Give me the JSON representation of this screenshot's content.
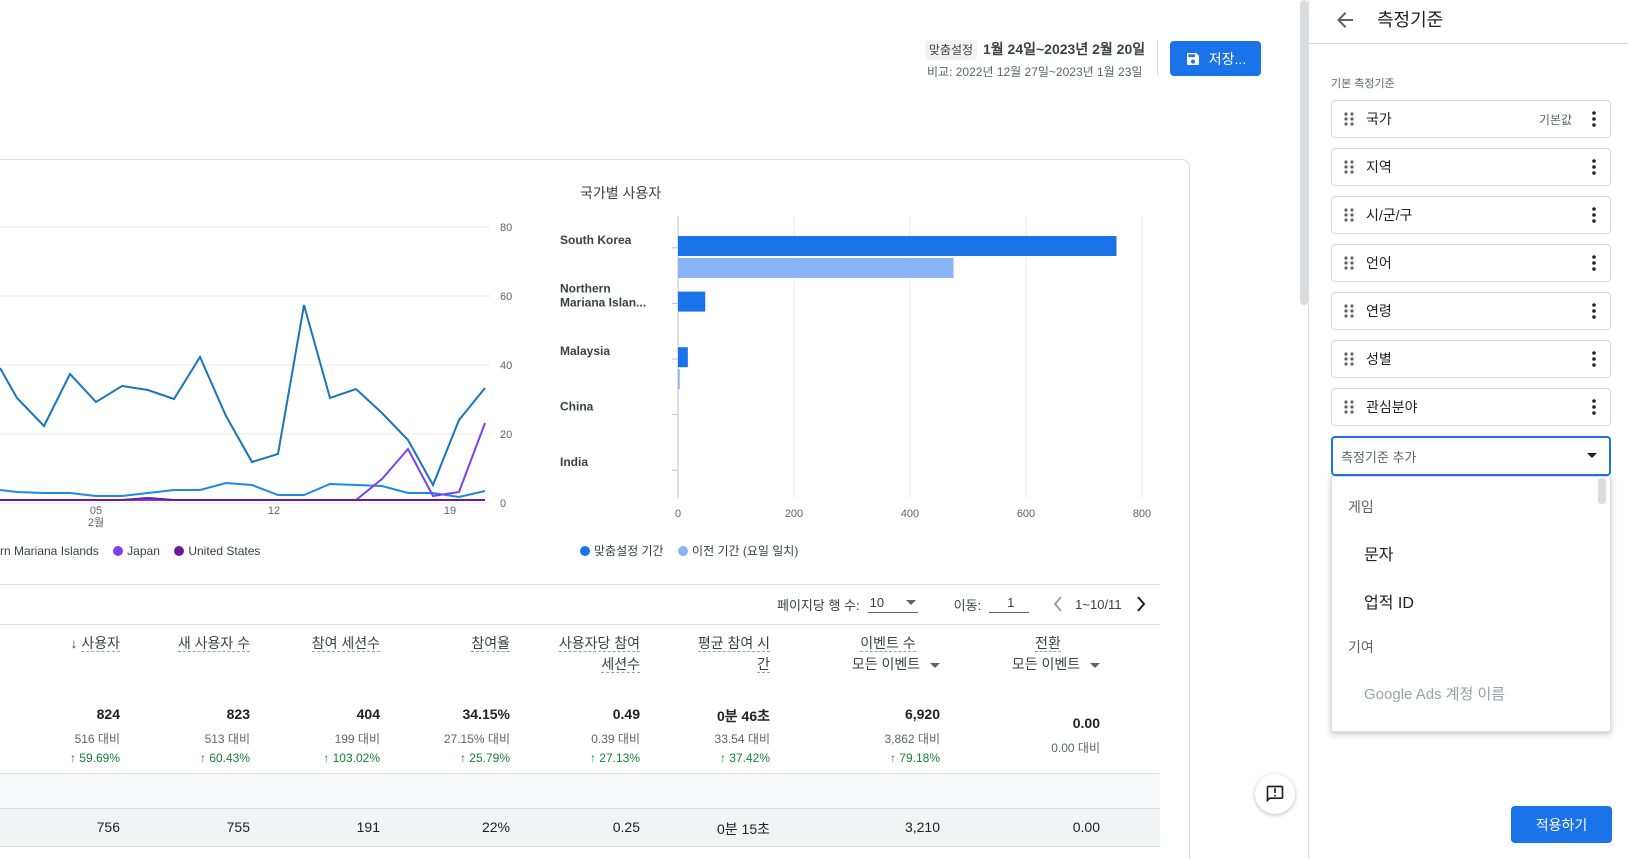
{
  "header": {
    "custom_badge": "맞춤설정",
    "date_range": "1월 24일~2023년 2월 20일",
    "compare": "비교: 2022년 12월 27일~2023년 1월 23일",
    "save_label": "저장..."
  },
  "line_chart": {
    "y_ticks": [
      "80",
      "60",
      "40",
      "20",
      "0"
    ],
    "x_ticks": [
      {
        "label": "05",
        "sub": "2월"
      },
      {
        "label": "12",
        "sub": ""
      },
      {
        "label": "19",
        "sub": ""
      }
    ],
    "legend": [
      {
        "name": "rn Mariana Islands",
        "color": "#1e88e5"
      },
      {
        "name": "Japan",
        "color": "#7e3ff2"
      },
      {
        "name": "United States",
        "color": "#6a1b9a"
      }
    ]
  },
  "chart_data": {
    "type": "bar",
    "title": "국가별 사용자",
    "categories": [
      "South Korea",
      "Northern Mariana Islan...",
      "Malaysia",
      "China",
      "India"
    ],
    "series": [
      {
        "name": "맞춤설정 기간",
        "color": "#1a73e8",
        "values": [
          756,
          47,
          17,
          0,
          0
        ]
      },
      {
        "name": "이전 기간 (요일 일치)",
        "color": "#8ab4f8",
        "values": [
          475,
          0,
          3,
          0,
          0
        ]
      }
    ],
    "xlim": [
      0,
      800
    ],
    "x_ticks": [
      "0",
      "200",
      "400",
      "600",
      "800"
    ],
    "grid": true,
    "legend": "bottom"
  },
  "pagination": {
    "rows_label": "페이지당 행 수:",
    "rows_value": "10",
    "goto_label": "이동:",
    "goto_value": "1",
    "range": "1~10/11"
  },
  "table": {
    "columns": [
      {
        "line1": "사용자",
        "line2": "",
        "sorted": true
      },
      {
        "line1": "새 사용자 수",
        "line2": ""
      },
      {
        "line1": "참여 세션수",
        "line2": ""
      },
      {
        "line1": "참여율",
        "line2": ""
      },
      {
        "line1": "사용자당 참여",
        "line2": "세션수"
      },
      {
        "line1": "평균 참여 시",
        "line2": "간"
      },
      {
        "line1": "이벤트 수",
        "line2": "모든 이벤트"
      },
      {
        "line1": "전환",
        "line2": "모든 이벤트"
      }
    ],
    "totals": [
      {
        "value": "824",
        "compare": "516 대비",
        "change": "59.69%"
      },
      {
        "value": "823",
        "compare": "513 대비",
        "change": "60.43%"
      },
      {
        "value": "404",
        "compare": "199 대비",
        "change": "103.02%"
      },
      {
        "value": "34.15%",
        "compare": "27.15% 대비",
        "change": "25.79%"
      },
      {
        "value": "0.49",
        "compare": "0.39 대비",
        "change": "27.13%"
      },
      {
        "value": "0분 46초",
        "compare": "33.54 대비",
        "change": "37.42%"
      },
      {
        "value": "6,920",
        "compare": "3,862 대비",
        "change": "79.18%"
      },
      {
        "value": "0.00",
        "compare": "0.00 대비",
        "change": ""
      }
    ],
    "row1": [
      "756",
      "755",
      "191",
      "22%",
      "0.25",
      "0분 15초",
      "3,210",
      "0.00"
    ]
  },
  "panel": {
    "title": "측정기준",
    "section": "기본 측정기준",
    "default_badge": "기본값",
    "dimensions": [
      "국가",
      "지역",
      "시/군/구",
      "언어",
      "연령",
      "성별",
      "관심분야"
    ],
    "add_placeholder": "측정기준 추가",
    "dropdown": {
      "cat1": "게임",
      "opt1": "문자",
      "opt2": "업적 ID",
      "cat2": "기여",
      "opt3": "Google Ads 계정 이름"
    },
    "apply_label": "적용하기"
  }
}
